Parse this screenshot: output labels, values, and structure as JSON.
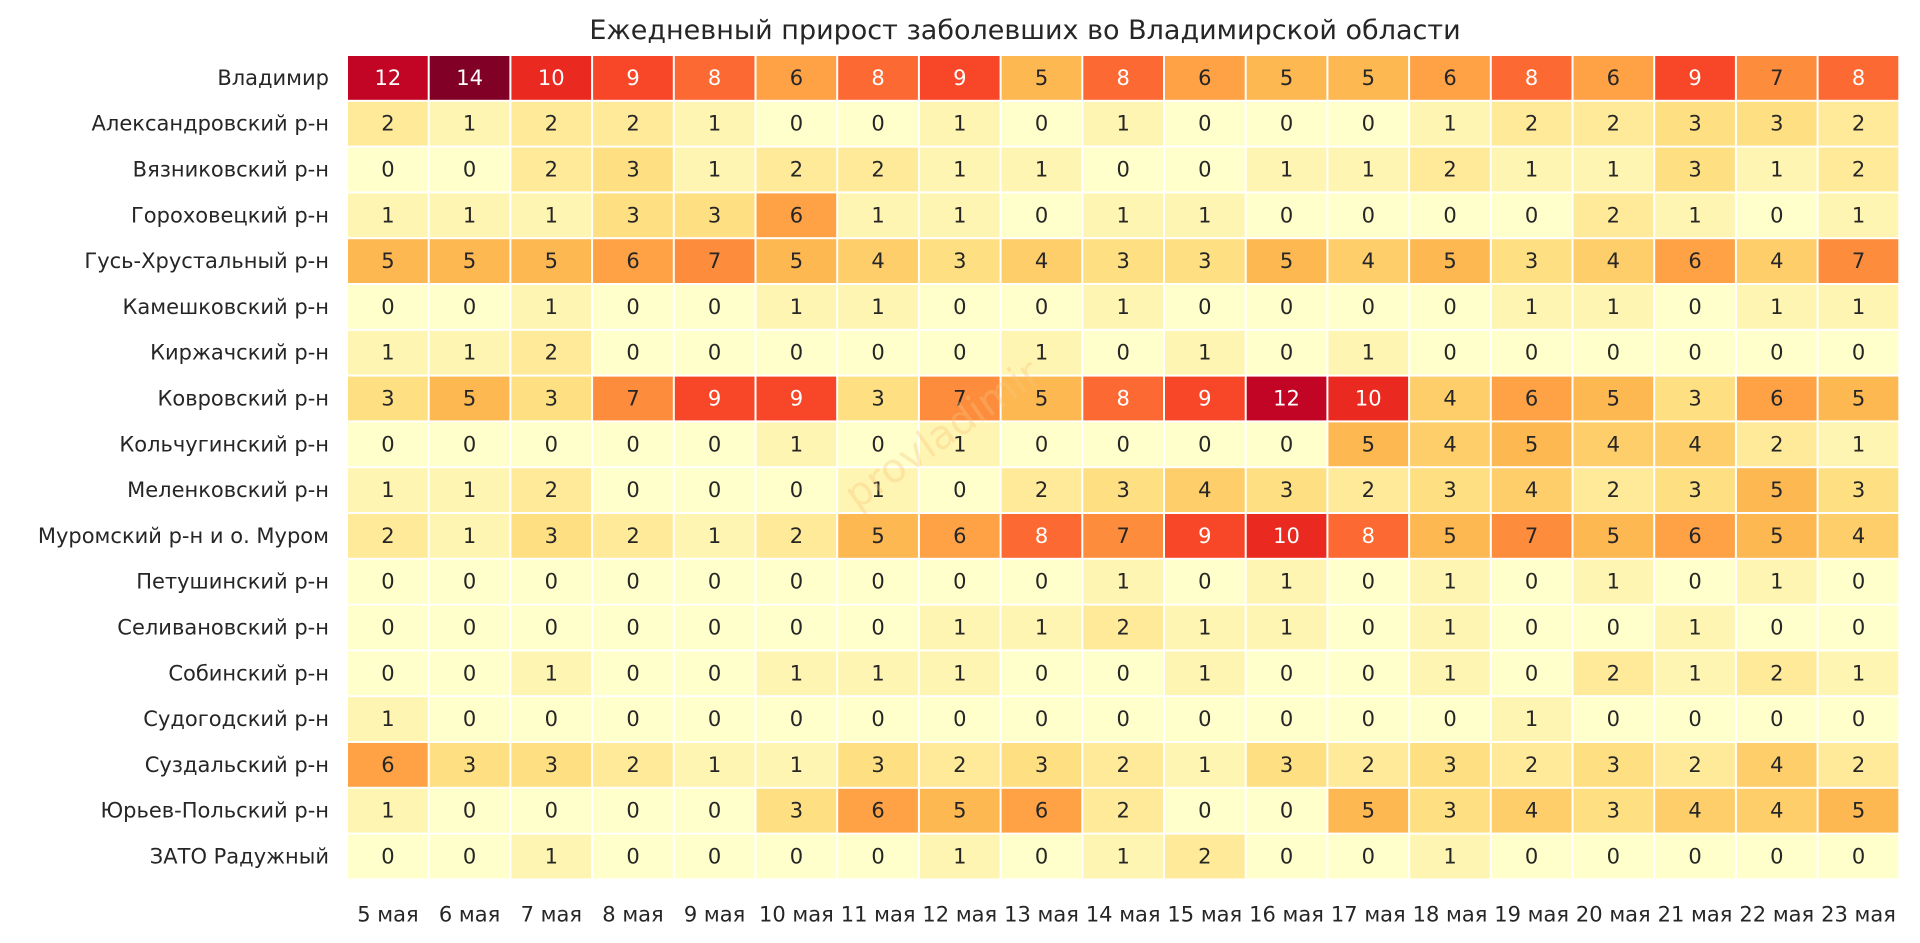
{
  "chart_data": {
    "type": "heatmap",
    "title": "Ежедневный прирост заболевших во Владимирской области",
    "xlabel": "",
    "ylabel": "",
    "columns": [
      "5 мая",
      "6 мая",
      "7 мая",
      "8 мая",
      "9 мая",
      "10 мая",
      "11 мая",
      "12 мая",
      "13 мая",
      "14 мая",
      "15 мая",
      "16 мая",
      "17 мая",
      "18 мая",
      "19 мая",
      "20 мая",
      "21 мая",
      "22 мая",
      "23 мая"
    ],
    "rows": [
      "Владимир",
      "Александровский р-н",
      "Вязниковский р-н",
      "Гороховецкий р-н",
      "Гусь-Хрустальный р-н",
      "Камешковский р-н",
      "Киржачский р-н",
      "Ковровский р-н",
      "Кольчугинский р-н",
      "Меленковский р-н",
      "Муромский р-н и о. Муром",
      "Петушинский р-н",
      "Селивановский р-н",
      "Собинский р-н",
      "Судогодский р-н",
      "Суздальский р-н",
      "Юрьев-Польский р-н",
      "ЗАТО Радужный"
    ],
    "values": [
      [
        12,
        14,
        10,
        9,
        8,
        6,
        8,
        9,
        5,
        8,
        6,
        5,
        5,
        6,
        8,
        6,
        9,
        7,
        8
      ],
      [
        2,
        1,
        2,
        2,
        1,
        0,
        0,
        1,
        0,
        1,
        0,
        0,
        0,
        1,
        2,
        2,
        3,
        3,
        2
      ],
      [
        0,
        0,
        2,
        3,
        1,
        2,
        2,
        1,
        1,
        0,
        0,
        1,
        1,
        2,
        1,
        1,
        3,
        1,
        2
      ],
      [
        1,
        1,
        1,
        3,
        3,
        6,
        1,
        1,
        0,
        1,
        1,
        0,
        0,
        0,
        0,
        2,
        1,
        0,
        1
      ],
      [
        5,
        5,
        5,
        6,
        7,
        5,
        4,
        3,
        4,
        3,
        3,
        5,
        4,
        5,
        3,
        4,
        6,
        4,
        7
      ],
      [
        0,
        0,
        1,
        0,
        0,
        1,
        1,
        0,
        0,
        1,
        0,
        0,
        0,
        0,
        1,
        1,
        0,
        1,
        1
      ],
      [
        1,
        1,
        2,
        0,
        0,
        0,
        0,
        0,
        1,
        0,
        1,
        0,
        1,
        0,
        0,
        0,
        0,
        0,
        0
      ],
      [
        3,
        5,
        3,
        7,
        9,
        9,
        3,
        7,
        5,
        8,
        9,
        12,
        10,
        4,
        6,
        5,
        3,
        6,
        5
      ],
      [
        0,
        0,
        0,
        0,
        0,
        1,
        0,
        1,
        0,
        0,
        0,
        0,
        5,
        4,
        5,
        4,
        4,
        2,
        1
      ],
      [
        1,
        1,
        2,
        0,
        0,
        0,
        1,
        0,
        2,
        3,
        4,
        3,
        2,
        3,
        4,
        2,
        3,
        5,
        3
      ],
      [
        2,
        1,
        3,
        2,
        1,
        2,
        5,
        6,
        8,
        7,
        9,
        10,
        8,
        5,
        7,
        5,
        6,
        5,
        4
      ],
      [
        0,
        0,
        0,
        0,
        0,
        0,
        0,
        0,
        0,
        1,
        0,
        1,
        0,
        1,
        0,
        1,
        0,
        1,
        0
      ],
      [
        0,
        0,
        0,
        0,
        0,
        0,
        0,
        1,
        1,
        2,
        1,
        1,
        0,
        1,
        0,
        0,
        1,
        0,
        0
      ],
      [
        0,
        0,
        1,
        0,
        0,
        1,
        1,
        1,
        0,
        0,
        1,
        0,
        0,
        1,
        0,
        2,
        1,
        2,
        1
      ],
      [
        1,
        0,
        0,
        0,
        0,
        0,
        0,
        0,
        0,
        0,
        0,
        0,
        0,
        0,
        1,
        0,
        0,
        0,
        0
      ],
      [
        6,
        3,
        3,
        2,
        1,
        1,
        3,
        2,
        3,
        2,
        1,
        3,
        2,
        3,
        2,
        3,
        2,
        4,
        2
      ],
      [
        1,
        0,
        0,
        0,
        0,
        3,
        6,
        5,
        6,
        2,
        0,
        0,
        5,
        3,
        4,
        3,
        4,
        4,
        5
      ],
      [
        0,
        0,
        1,
        0,
        0,
        0,
        0,
        1,
        0,
        1,
        2,
        0,
        0,
        1,
        0,
        0,
        0,
        0,
        0
      ]
    ],
    "vmin": 0,
    "vmax": 14,
    "colormap": "YlOrRd",
    "grid": false,
    "legend": "none",
    "watermark": "provladimir"
  }
}
